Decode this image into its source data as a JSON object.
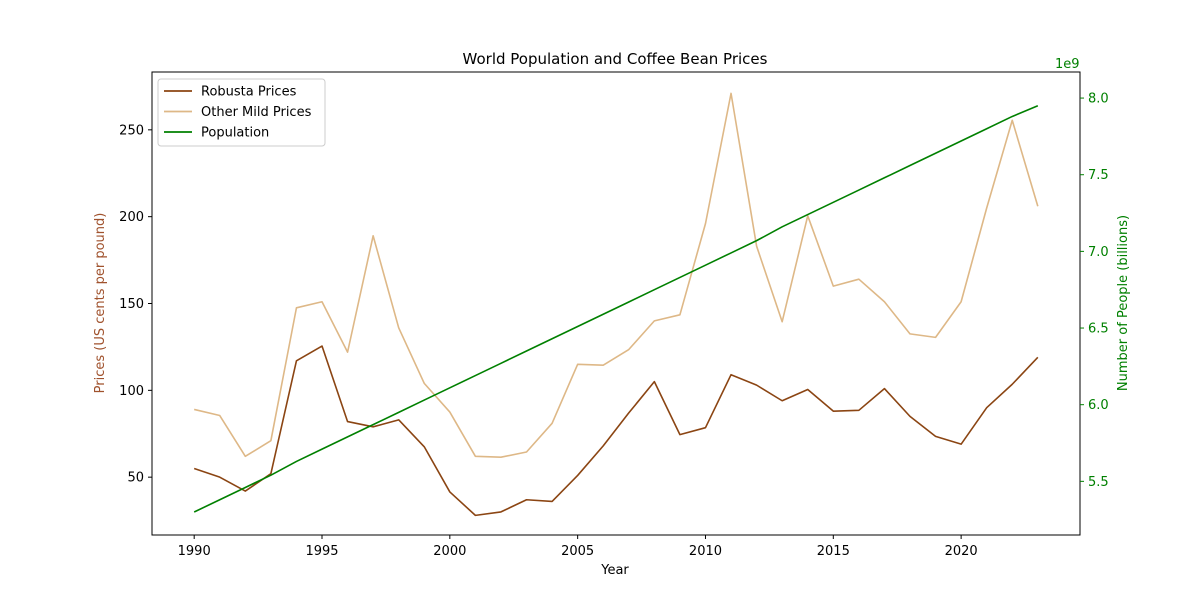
{
  "chart_data": {
    "type": "line",
    "title": "World Population and Coffee Bean Prices",
    "xlabel": "Year",
    "ylabel_left": "Prices (US cents per pound)",
    "ylabel_right": "Number of People (billions)",
    "right_axis_offset_label": "1e9",
    "xlim": [
      1988.35,
      2024.65
    ],
    "ylim_left": [
      16.7,
      283.3
    ],
    "ylim_right": [
      5.15,
      8.17
    ],
    "x_ticks": [
      1990,
      1995,
      2000,
      2005,
      2010,
      2015,
      2020
    ],
    "y_left_ticks": [
      50,
      100,
      150,
      200,
      250
    ],
    "y_right_ticks": [
      "5.5",
      "6.0",
      "6.5",
      "7.0",
      "7.5",
      "8.0"
    ],
    "y_right_tick_values": [
      5.5,
      6.0,
      6.5,
      7.0,
      7.5,
      8.0
    ],
    "grid": false,
    "legend_position": "top-left",
    "x": [
      1990,
      1991,
      1992,
      1993,
      1994,
      1995,
      1996,
      1997,
      1998,
      1999,
      2000,
      2001,
      2002,
      2003,
      2004,
      2005,
      2006,
      2007,
      2008,
      2009,
      2010,
      2011,
      2012,
      2013,
      2014,
      2015,
      2016,
      2017,
      2018,
      2019,
      2020,
      2021,
      2022,
      2023
    ],
    "series": [
      {
        "name": "Robusta Prices",
        "axis": "left",
        "color": "#8B4513",
        "values": [
          55,
          50,
          42,
          52,
          117,
          125.5,
          82,
          79,
          83,
          67.5,
          41.5,
          28,
          30,
          37,
          36,
          51,
          68,
          87,
          105,
          74.5,
          78.5,
          109,
          103,
          94,
          100.5,
          88,
          88.5,
          101,
          85,
          73.5,
          69,
          90,
          103.5,
          119
        ]
      },
      {
        "name": "Other Mild Prices",
        "axis": "left",
        "color": "#DEB887",
        "values": [
          89,
          85.5,
          62,
          71,
          147.5,
          151,
          122,
          189,
          136,
          104,
          87.5,
          62,
          61.5,
          64.5,
          81,
          115,
          114.5,
          123.5,
          140,
          143.5,
          196,
          271,
          183,
          139.5,
          200.5,
          160,
          164,
          151,
          132.5,
          130.5,
          151,
          205,
          255.5,
          206
        ]
      },
      {
        "name": "Population",
        "axis": "right",
        "color": "#008000",
        "values": [
          5.3,
          5.38,
          5.46,
          5.54,
          5.63,
          5.71,
          5.79,
          5.87,
          5.95,
          6.03,
          6.11,
          6.19,
          6.27,
          6.35,
          6.43,
          6.51,
          6.59,
          6.67,
          6.75,
          6.83,
          6.91,
          6.99,
          7.07,
          7.16,
          7.24,
          7.32,
          7.4,
          7.48,
          7.56,
          7.64,
          7.72,
          7.8,
          7.88,
          7.95
        ]
      }
    ]
  }
}
